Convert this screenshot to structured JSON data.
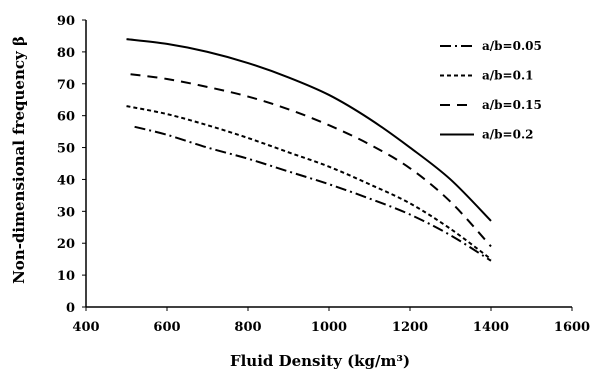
{
  "chart_data": {
    "type": "line",
    "xlabel": "Fluid Density (kg/m³)",
    "ylabel": "Non-dimensional frequency β",
    "xlim": [
      400,
      1600
    ],
    "ylim": [
      0,
      90
    ],
    "xticks": [
      400,
      600,
      800,
      1000,
      1200,
      1400,
      1600
    ],
    "yticks": [
      0,
      10,
      20,
      30,
      40,
      50,
      60,
      70,
      80,
      90
    ],
    "grid": false,
    "legend": "top-right",
    "series": [
      {
        "name": "a/b=0.05",
        "dash": "dash-dot",
        "x": [
          520,
          600,
          700,
          800,
          900,
          1000,
          1100,
          1200,
          1300,
          1400
        ],
        "y": [
          56.5,
          54,
          50,
          46.5,
          42.5,
          38.5,
          34,
          29,
          22.5,
          14.5
        ]
      },
      {
        "name": "a/b=0.1",
        "dash": "short-dash",
        "x": [
          500,
          600,
          700,
          800,
          900,
          1000,
          1100,
          1200,
          1300,
          1400
        ],
        "y": [
          63,
          60.5,
          57,
          53,
          48.5,
          44,
          38.5,
          32.5,
          24.5,
          15
        ]
      },
      {
        "name": "a/b=0.15",
        "dash": "long-dash",
        "x": [
          510,
          600,
          700,
          800,
          900,
          1000,
          1100,
          1200,
          1300,
          1400
        ],
        "y": [
          73,
          71.5,
          69,
          66,
          62,
          57,
          51,
          43.5,
          33,
          19
        ]
      },
      {
        "name": "a/b=0.2",
        "dash": "solid",
        "x": [
          500,
          600,
          700,
          800,
          900,
          1000,
          1100,
          1200,
          1300,
          1400
        ],
        "y": [
          84,
          82.5,
          80,
          76.5,
          72,
          66.5,
          59,
          50,
          40,
          27
        ]
      }
    ]
  }
}
